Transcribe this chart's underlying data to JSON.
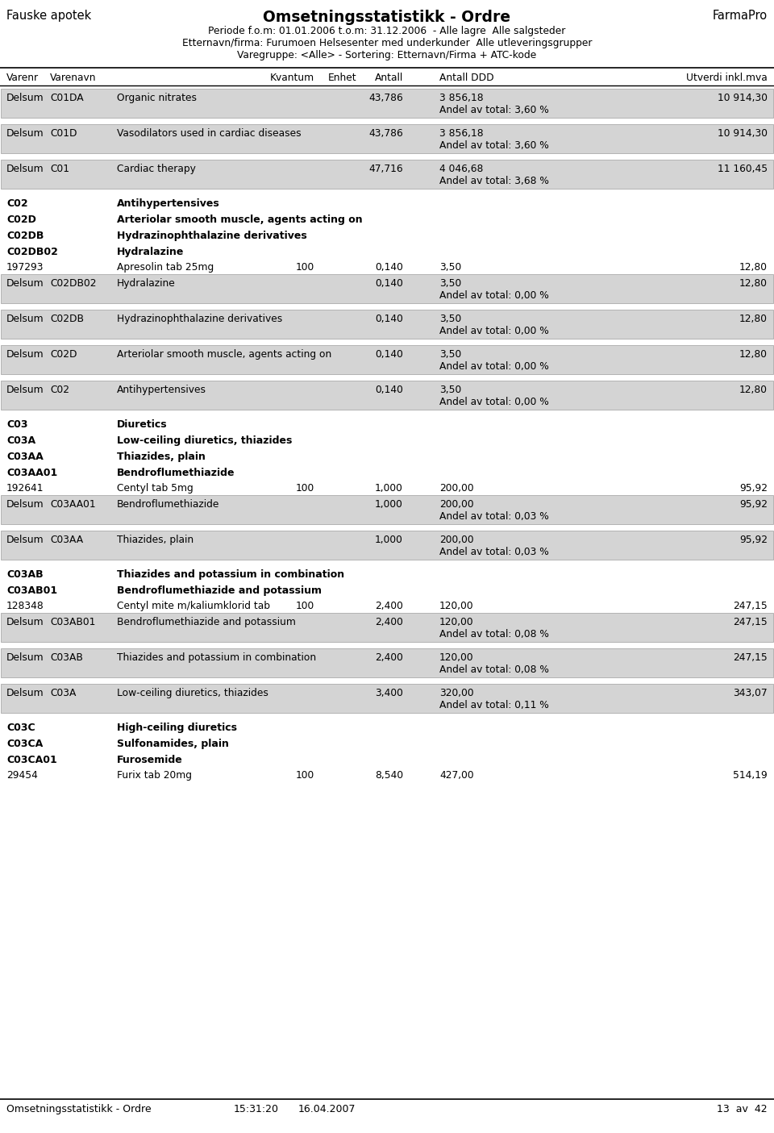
{
  "title": "Omsetningsstatistikk - Ordre",
  "left_header": "Fauske apotek",
  "right_header": "FarmaPro",
  "subtitle_lines": [
    "Periode f.o.m: 01.01.2006 t.o.m: 31.12.2006  - Alle lagre  Alle salgsteder",
    "Etternavn/firma: Furumoen Helsesenter med underkunder  Alle utleveringsgrupper",
    "Varegruppe: <Alle> - Sortering: Etternavn/Firma + ATC-kode"
  ],
  "footer_left": "Omsetningsstatistikk - Ordre",
  "footer_time": "15:31:20",
  "footer_date": "16.04.2007",
  "footer_page": "13  av  42",
  "bg_color": "#d4d4d4",
  "rows": [
    {
      "type": "subsum",
      "col1": "Delsum",
      "col2": "C01DA",
      "col3": "Organic nitrates",
      "antall": "43,786",
      "ddd": "3 856,18",
      "utverdi": "10 914,30",
      "andel": "Andel av total: 3,60 %"
    },
    {
      "type": "gap"
    },
    {
      "type": "subsum",
      "col1": "Delsum",
      "col2": "C01D",
      "col3": "Vasodilators used in cardiac diseases",
      "antall": "43,786",
      "ddd": "3 856,18",
      "utverdi": "10 914,30",
      "andel": "Andel av total: 3,60 %"
    },
    {
      "type": "gap"
    },
    {
      "type": "subsum",
      "col1": "Delsum",
      "col2": "C01",
      "col3": "Cardiac therapy",
      "antall": "47,716",
      "ddd": "4 046,68",
      "utverdi": "11 160,45",
      "andel": "Andel av total: 3,68 %"
    },
    {
      "type": "gap"
    },
    {
      "type": "header",
      "col2": "C02",
      "col3": "Antihypertensives"
    },
    {
      "type": "header",
      "col2": "C02D",
      "col3": "Arteriolar smooth muscle, agents acting on"
    },
    {
      "type": "header",
      "col2": "C02DB",
      "col3": "Hydrazinophthalazine derivatives"
    },
    {
      "type": "header",
      "col2": "C02DB02",
      "col3": "Hydralazine"
    },
    {
      "type": "product",
      "col1": "197293",
      "col3": "Apresolin tab 25mg",
      "kvantum": "100",
      "antall": "0,140",
      "ddd": "3,50",
      "utverdi": "12,80"
    },
    {
      "type": "subsum",
      "col1": "Delsum",
      "col2": "C02DB02",
      "col3": "Hydralazine",
      "antall": "0,140",
      "ddd": "3,50",
      "utverdi": "12,80",
      "andel": "Andel av total: 0,00 %"
    },
    {
      "type": "gap"
    },
    {
      "type": "subsum",
      "col1": "Delsum",
      "col2": "C02DB",
      "col3": "Hydrazinophthalazine derivatives",
      "antall": "0,140",
      "ddd": "3,50",
      "utverdi": "12,80",
      "andel": "Andel av total: 0,00 %"
    },
    {
      "type": "gap"
    },
    {
      "type": "subsum",
      "col1": "Delsum",
      "col2": "C02D",
      "col3": "Arteriolar smooth muscle, agents acting on",
      "antall": "0,140",
      "ddd": "3,50",
      "utverdi": "12,80",
      "andel": "Andel av total: 0,00 %"
    },
    {
      "type": "gap"
    },
    {
      "type": "subsum",
      "col1": "Delsum",
      "col2": "C02",
      "col3": "Antihypertensives",
      "antall": "0,140",
      "ddd": "3,50",
      "utverdi": "12,80",
      "andel": "Andel av total: 0,00 %"
    },
    {
      "type": "gap"
    },
    {
      "type": "header",
      "col2": "C03",
      "col3": "Diuretics"
    },
    {
      "type": "header",
      "col2": "C03A",
      "col3": "Low-ceiling diuretics, thiazides"
    },
    {
      "type": "header",
      "col2": "C03AA",
      "col3": "Thiazides, plain"
    },
    {
      "type": "header",
      "col2": "C03AA01",
      "col3": "Bendroflumethiazide"
    },
    {
      "type": "product",
      "col1": "192641",
      "col3": "Centyl tab 5mg",
      "kvantum": "100",
      "antall": "1,000",
      "ddd": "200,00",
      "utverdi": "95,92"
    },
    {
      "type": "subsum",
      "col1": "Delsum",
      "col2": "C03AA01",
      "col3": "Bendroflumethiazide",
      "antall": "1,000",
      "ddd": "200,00",
      "utverdi": "95,92",
      "andel": "Andel av total: 0,03 %"
    },
    {
      "type": "gap"
    },
    {
      "type": "subsum",
      "col1": "Delsum",
      "col2": "C03AA",
      "col3": "Thiazides, plain",
      "antall": "1,000",
      "ddd": "200,00",
      "utverdi": "95,92",
      "andel": "Andel av total: 0,03 %"
    },
    {
      "type": "gap"
    },
    {
      "type": "header",
      "col2": "C03AB",
      "col3": "Thiazides and potassium in combination"
    },
    {
      "type": "header",
      "col2": "C03AB01",
      "col3": "Bendroflumethiazide and potassium"
    },
    {
      "type": "product",
      "col1": "128348",
      "col3": "Centyl mite m/kaliumklorid tab",
      "kvantum": "100",
      "antall": "2,400",
      "ddd": "120,00",
      "utverdi": "247,15"
    },
    {
      "type": "subsum",
      "col1": "Delsum",
      "col2": "C03AB01",
      "col3": "Bendroflumethiazide and potassium",
      "antall": "2,400",
      "ddd": "120,00",
      "utverdi": "247,15",
      "andel": "Andel av total: 0,08 %"
    },
    {
      "type": "gap"
    },
    {
      "type": "subsum",
      "col1": "Delsum",
      "col2": "C03AB",
      "col3": "Thiazides and potassium in combination",
      "antall": "2,400",
      "ddd": "120,00",
      "utverdi": "247,15",
      "andel": "Andel av total: 0,08 %"
    },
    {
      "type": "gap"
    },
    {
      "type": "subsum",
      "col1": "Delsum",
      "col2": "C03A",
      "col3": "Low-ceiling diuretics, thiazides",
      "antall": "3,400",
      "ddd": "320,00",
      "utverdi": "343,07",
      "andel": "Andel av total: 0,11 %"
    },
    {
      "type": "gap"
    },
    {
      "type": "header",
      "col2": "C03C",
      "col3": "High-ceiling diuretics"
    },
    {
      "type": "header",
      "col2": "C03CA",
      "col3": "Sulfonamides, plain"
    },
    {
      "type": "header",
      "col2": "C03CA01",
      "col3": "Furosemide"
    },
    {
      "type": "product",
      "col1": "29454",
      "col3": "Furix tab 20mg",
      "kvantum": "100",
      "antall": "8,540",
      "ddd": "427,00",
      "utverdi": "514,19"
    }
  ]
}
